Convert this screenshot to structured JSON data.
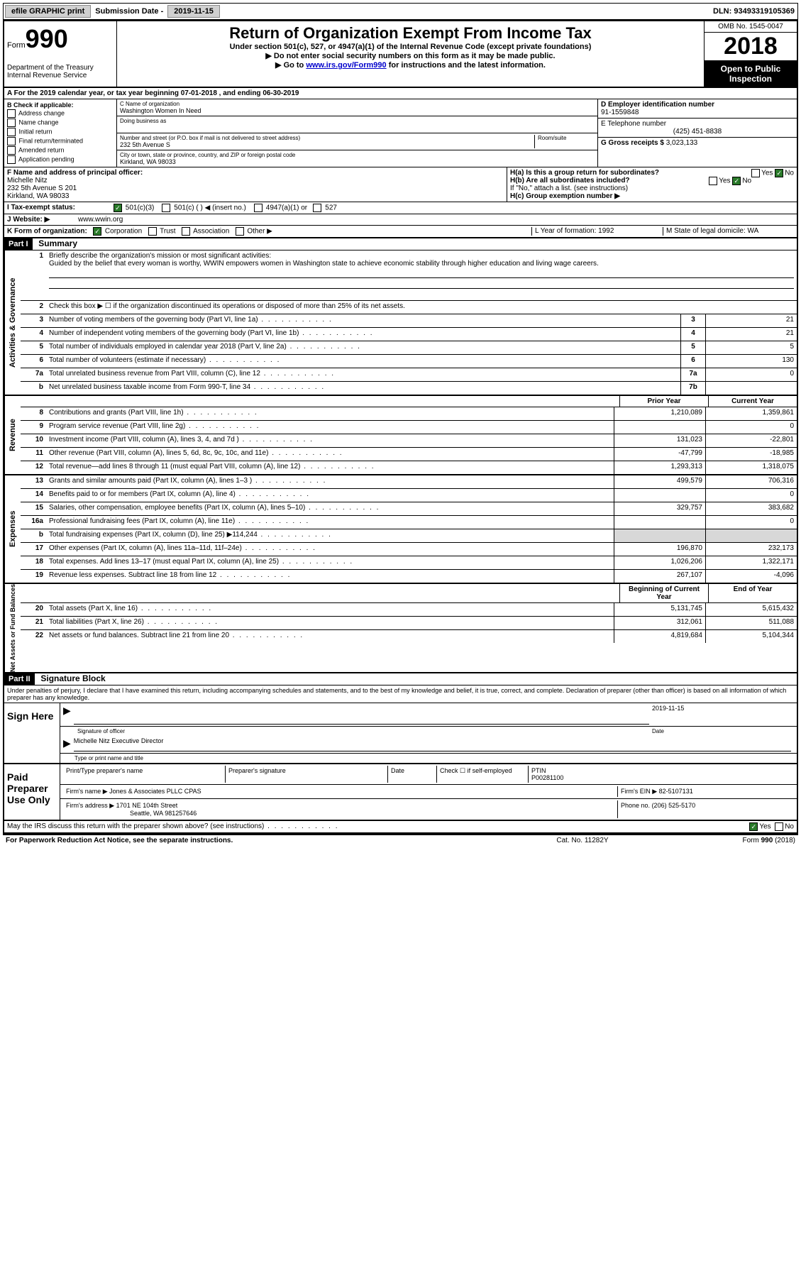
{
  "top": {
    "efile": "efile GRAPHIC print",
    "sub_label": "Submission Date -",
    "sub_date": "2019-11-15",
    "dln_label": "DLN:",
    "dln": "93493319105369"
  },
  "header": {
    "form_label": "Form",
    "form_num": "990",
    "dept": "Department of the Treasury Internal Revenue Service",
    "title": "Return of Organization Exempt From Income Tax",
    "sub1": "Under section 501(c), 527, or 4947(a)(1) of the Internal Revenue Code (except private foundations)",
    "sub2": "▶ Do not enter social security numbers on this form as it may be made public.",
    "sub3_pre": "▶ Go to ",
    "sub3_link": "www.irs.gov/Form990",
    "sub3_post": " for instructions and the latest information.",
    "omb": "OMB No. 1545-0047",
    "year": "2018",
    "inspect": "Open to Public Inspection"
  },
  "row_a": "A For the 2019 calendar year, or tax year beginning 07-01-2018   , and ending 06-30-2019",
  "col_b": {
    "header": "B Check if applicable:",
    "items": [
      "Address change",
      "Name change",
      "Initial return",
      "Final return/terminated",
      "Amended return",
      "Application pending"
    ]
  },
  "col_c": {
    "name_label": "C Name of organization",
    "name": "Washington Women In Need",
    "dba_label": "Doing business as",
    "addr_label": "Number and street (or P.O. box if mail is not delivered to street address)",
    "room_label": "Room/suite",
    "addr": "232 5th Avenue S",
    "city_label": "City or town, state or province, country, and ZIP or foreign postal code",
    "city": "Kirkland, WA  98033"
  },
  "col_de": {
    "d_label": "D Employer identification number",
    "d_val": "91-1559848",
    "e_label": "E Telephone number",
    "e_val": "(425) 451-8838",
    "g_label": "G Gross receipts $",
    "g_val": "3,023,133"
  },
  "row_f": {
    "label": "F  Name and address of principal officer:",
    "name": "Michelle Nitz",
    "addr1": "232 5th Avenue S 201",
    "addr2": "Kirkland, WA  98033"
  },
  "row_h": {
    "ha": "H(a)  Is this a group return for subordinates?",
    "hb": "H(b)  Are all subordinates included?",
    "hb_note": "If \"No,\" attach a list. (see instructions)",
    "hc": "H(c)  Group exemption number ▶"
  },
  "row_i": {
    "label": "I   Tax-exempt status:",
    "opts": [
      "501(c)(3)",
      "501(c) (  ) ◀ (insert no.)",
      "4947(a)(1) or",
      "527"
    ]
  },
  "row_j": {
    "label": "J   Website: ▶",
    "val": "www.wwin.org"
  },
  "row_k": {
    "label": "K Form of organization:",
    "opts": [
      "Corporation",
      "Trust",
      "Association",
      "Other ▶"
    ]
  },
  "row_lm": {
    "l": "L Year of formation: 1992",
    "m": "M State of legal domicile: WA"
  },
  "part1": {
    "header": "Part I",
    "title": "Summary",
    "line1_label": "Briefly describe the organization's mission or most significant activities:",
    "mission": "Guided by the belief that every woman is worthy, WWIN empowers women in Washington state to achieve economic stability through higher education and living wage careers.",
    "line2": "Check this box ▶ ☐ if the organization discontinued its operations or disposed of more than 25% of its net assets."
  },
  "sections": {
    "governance": {
      "label": "Activities & Governance",
      "lines": [
        {
          "n": "3",
          "d": "Number of voting members of the governing body (Part VI, line 1a)",
          "b": "3",
          "v": "21"
        },
        {
          "n": "4",
          "d": "Number of independent voting members of the governing body (Part VI, line 1b)",
          "b": "4",
          "v": "21"
        },
        {
          "n": "5",
          "d": "Total number of individuals employed in calendar year 2018 (Part V, line 2a)",
          "b": "5",
          "v": "5"
        },
        {
          "n": "6",
          "d": "Total number of volunteers (estimate if necessary)",
          "b": "6",
          "v": "130"
        },
        {
          "n": "7a",
          "d": "Total unrelated business revenue from Part VIII, column (C), line 12",
          "b": "7a",
          "v": "0"
        },
        {
          "n": "b",
          "d": "Net unrelated business taxable income from Form 990-T, line 34",
          "b": "7b",
          "v": ""
        }
      ]
    },
    "revenue": {
      "label": "Revenue",
      "header_prior": "Prior Year",
      "header_curr": "Current Year",
      "lines": [
        {
          "n": "8",
          "d": "Contributions and grants (Part VIII, line 1h)",
          "p": "1,210,089",
          "c": "1,359,861"
        },
        {
          "n": "9",
          "d": "Program service revenue (Part VIII, line 2g)",
          "p": "",
          "c": "0"
        },
        {
          "n": "10",
          "d": "Investment income (Part VIII, column (A), lines 3, 4, and 7d )",
          "p": "131,023",
          "c": "-22,801"
        },
        {
          "n": "11",
          "d": "Other revenue (Part VIII, column (A), lines 5, 6d, 8c, 9c, 10c, and 11e)",
          "p": "-47,799",
          "c": "-18,985"
        },
        {
          "n": "12",
          "d": "Total revenue—add lines 8 through 11 (must equal Part VIII, column (A), line 12)",
          "p": "1,293,313",
          "c": "1,318,075"
        }
      ]
    },
    "expenses": {
      "label": "Expenses",
      "lines": [
        {
          "n": "13",
          "d": "Grants and similar amounts paid (Part IX, column (A), lines 1–3 )",
          "p": "499,579",
          "c": "706,316"
        },
        {
          "n": "14",
          "d": "Benefits paid to or for members (Part IX, column (A), line 4)",
          "p": "",
          "c": "0"
        },
        {
          "n": "15",
          "d": "Salaries, other compensation, employee benefits (Part IX, column (A), lines 5–10)",
          "p": "329,757",
          "c": "383,682"
        },
        {
          "n": "16a",
          "d": "Professional fundraising fees (Part IX, column (A), line 11e)",
          "p": "",
          "c": "0"
        },
        {
          "n": "b",
          "d": "Total fundraising expenses (Part IX, column (D), line 25) ▶114,244",
          "p": "shade",
          "c": "shade"
        },
        {
          "n": "17",
          "d": "Other expenses (Part IX, column (A), lines 11a–11d, 11f–24e)",
          "p": "196,870",
          "c": "232,173"
        },
        {
          "n": "18",
          "d": "Total expenses. Add lines 13–17 (must equal Part IX, column (A), line 25)",
          "p": "1,026,206",
          "c": "1,322,171"
        },
        {
          "n": "19",
          "d": "Revenue less expenses. Subtract line 18 from line 12",
          "p": "267,107",
          "c": "-4,096"
        }
      ]
    },
    "netassets": {
      "label": "Net Assets or Fund Balances",
      "header_prior": "Beginning of Current Year",
      "header_curr": "End of Year",
      "lines": [
        {
          "n": "20",
          "d": "Total assets (Part X, line 16)",
          "p": "5,131,745",
          "c": "5,615,432"
        },
        {
          "n": "21",
          "d": "Total liabilities (Part X, line 26)",
          "p": "312,061",
          "c": "511,088"
        },
        {
          "n": "22",
          "d": "Net assets or fund balances. Subtract line 21 from line 20",
          "p": "4,819,684",
          "c": "5,104,344"
        }
      ]
    }
  },
  "part2": {
    "header": "Part II",
    "title": "Signature Block",
    "penalty": "Under penalties of perjury, I declare that I have examined this return, including accompanying schedules and statements, and to the best of my knowledge and belief, it is true, correct, and complete. Declaration of preparer (other than officer) is based on all information of which preparer has any knowledge."
  },
  "sign": {
    "label": "Sign Here",
    "sig_label": "Signature of officer",
    "date_label": "Date",
    "date": "2019-11-15",
    "name": "Michelle Nitz  Executive Director",
    "name_label": "Type or print name and title"
  },
  "paid": {
    "label": "Paid Preparer Use Only",
    "h1": "Print/Type preparer's name",
    "h2": "Preparer's signature",
    "h3": "Date",
    "check": "Check ☐ if self-employed",
    "ptin_label": "PTIN",
    "ptin": "P00281100",
    "firm_name_label": "Firm's name    ▶",
    "firm_name": "Jones & Associates PLLC CPAS",
    "firm_ein_label": "Firm's EIN ▶",
    "firm_ein": "82-5107131",
    "firm_addr_label": "Firm's address ▶",
    "firm_addr1": "1701 NE 104th Street",
    "firm_addr2": "Seattle, WA  981257646",
    "phone_label": "Phone no.",
    "phone": "(206) 525-5170"
  },
  "discuss": "May the IRS discuss this return with the preparer shown above? (see instructions)",
  "footer": {
    "left": "For Paperwork Reduction Act Notice, see the separate instructions.",
    "mid": "Cat. No. 11282Y",
    "right": "Form 990 (2018)"
  }
}
